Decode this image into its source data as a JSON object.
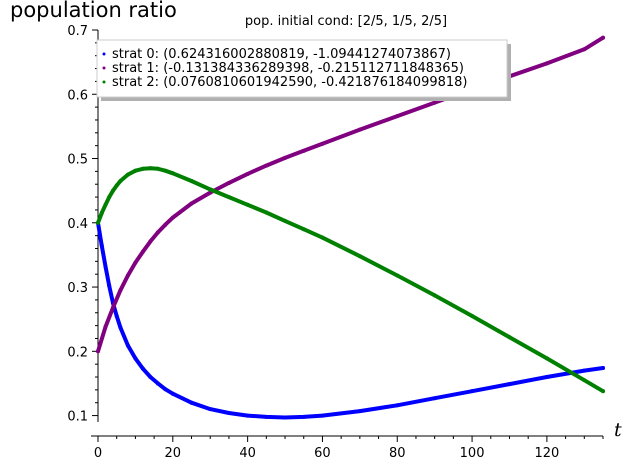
{
  "chart_data": {
    "type": "scatter",
    "title": "pop. initial cond: [2/5, 1/5, 2/5]",
    "xlabel": "t",
    "ylabel": "population ratio",
    "xlim": [
      0,
      135
    ],
    "ylim": [
      0.09,
      0.7
    ],
    "x_ticks": [
      0,
      20,
      40,
      60,
      80,
      100,
      120
    ],
    "y_ticks": [
      0.1,
      0.2,
      0.3,
      0.4,
      0.5,
      0.6,
      0.7
    ],
    "legend_position": "top-left",
    "grid": false,
    "series": [
      {
        "name": "strat 0: (0.624316002880819, -1.09441274073867)",
        "color": "#0000ff",
        "x": [
          0,
          1,
          2,
          3,
          4,
          5,
          6,
          8,
          10,
          12,
          14,
          16,
          18,
          20,
          25,
          30,
          35,
          40,
          45,
          50,
          55,
          60,
          70,
          80,
          90,
          100,
          110,
          120,
          130,
          135
        ],
        "y": [
          0.4,
          0.365,
          0.332,
          0.302,
          0.275,
          0.255,
          0.237,
          0.209,
          0.189,
          0.173,
          0.16,
          0.15,
          0.141,
          0.134,
          0.12,
          0.11,
          0.104,
          0.1,
          0.098,
          0.097,
          0.098,
          0.1,
          0.107,
          0.116,
          0.127,
          0.138,
          0.149,
          0.16,
          0.17,
          0.174
        ]
      },
      {
        "name": "strat 1: (-0.131384336289398, -0.215112711848365)",
        "color": "#800080",
        "x": [
          0,
          2,
          4,
          6,
          8,
          10,
          12,
          14,
          16,
          18,
          20,
          25,
          30,
          35,
          40,
          45,
          50,
          55,
          60,
          70,
          80,
          90,
          100,
          110,
          120,
          130,
          135
        ],
        "y": [
          0.2,
          0.238,
          0.268,
          0.295,
          0.318,
          0.338,
          0.355,
          0.371,
          0.385,
          0.397,
          0.408,
          0.43,
          0.447,
          0.462,
          0.476,
          0.489,
          0.501,
          0.512,
          0.523,
          0.545,
          0.566,
          0.587,
          0.608,
          0.628,
          0.648,
          0.67,
          0.688
        ]
      },
      {
        "name": "strat 2: (0.0760810601942590, -0.421876184099818)",
        "color": "#008000",
        "x": [
          0,
          1,
          2,
          3,
          4,
          5,
          6,
          8,
          10,
          12,
          14,
          16,
          18,
          20,
          25,
          30,
          35,
          40,
          45,
          50,
          55,
          60,
          70,
          80,
          90,
          100,
          110,
          120,
          130,
          135
        ],
        "y": [
          0.4,
          0.415,
          0.428,
          0.44,
          0.45,
          0.458,
          0.465,
          0.475,
          0.481,
          0.484,
          0.485,
          0.484,
          0.481,
          0.477,
          0.465,
          0.452,
          0.44,
          0.428,
          0.416,
          0.403,
          0.39,
          0.377,
          0.348,
          0.318,
          0.287,
          0.255,
          0.222,
          0.189,
          0.155,
          0.138
        ]
      }
    ]
  }
}
